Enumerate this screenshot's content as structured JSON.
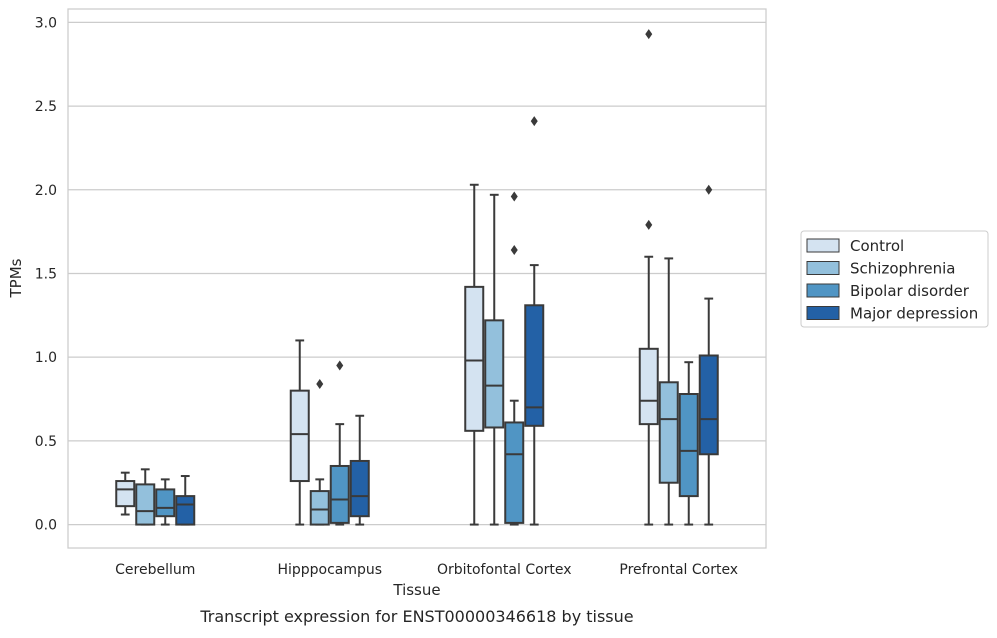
{
  "chart_data": {
    "type": "box",
    "xlabel": "Tissue",
    "ylabel": "TPMs",
    "caption": "Transcript expression for ENST00000346618 by tissue",
    "categories": [
      "Cerebellum",
      "Hipppocampus",
      "Orbitofontal Cortex",
      "Prefrontal Cortex"
    ],
    "ylim": [
      -0.14,
      3.08
    ],
    "yticks": [
      0.0,
      0.5,
      1.0,
      1.5,
      2.0,
      2.5,
      3.0
    ],
    "ytick_labels": [
      "0.0",
      "0.5",
      "1.0",
      "1.5",
      "2.0",
      "2.5",
      "3.0"
    ],
    "grid": "horizontal",
    "legend_position": "right",
    "series": [
      {
        "name": "Control",
        "color": "#d4e3f1",
        "boxes": [
          {
            "whislo": 0.06,
            "q1": 0.11,
            "med": 0.21,
            "q3": 0.26,
            "whishi": 0.31,
            "fliers": []
          },
          {
            "whislo": 0.0,
            "q1": 0.26,
            "med": 0.54,
            "q3": 0.8,
            "whishi": 1.1,
            "fliers": []
          },
          {
            "whislo": 0.0,
            "q1": 0.56,
            "med": 0.98,
            "q3": 1.42,
            "whishi": 2.03,
            "fliers": []
          },
          {
            "whislo": 0.0,
            "q1": 0.6,
            "med": 0.74,
            "q3": 1.05,
            "whishi": 1.6,
            "fliers": [
              1.79,
              2.93
            ]
          }
        ]
      },
      {
        "name": "Schizophrenia",
        "color": "#93c0dc",
        "boxes": [
          {
            "whislo": 0.0,
            "q1": 0.0,
            "med": 0.08,
            "q3": 0.24,
            "whishi": 0.33,
            "fliers": []
          },
          {
            "whislo": 0.0,
            "q1": 0.0,
            "med": 0.09,
            "q3": 0.2,
            "whishi": 0.27,
            "fliers": [
              0.84
            ]
          },
          {
            "whislo": 0.0,
            "q1": 0.58,
            "med": 0.83,
            "q3": 1.22,
            "whishi": 1.97,
            "fliers": []
          },
          {
            "whislo": 0.0,
            "q1": 0.25,
            "med": 0.63,
            "q3": 0.85,
            "whishi": 1.59,
            "fliers": []
          }
        ]
      },
      {
        "name": "Bipolar disorder",
        "color": "#5095c4",
        "boxes": [
          {
            "whislo": 0.0,
            "q1": 0.05,
            "med": 0.1,
            "q3": 0.21,
            "whishi": 0.27,
            "fliers": []
          },
          {
            "whislo": 0.0,
            "q1": 0.01,
            "med": 0.15,
            "q3": 0.35,
            "whishi": 0.6,
            "fliers": [
              0.95
            ]
          },
          {
            "whislo": 0.0,
            "q1": 0.01,
            "med": 0.42,
            "q3": 0.61,
            "whishi": 0.74,
            "fliers": [
              1.64,
              1.96
            ]
          },
          {
            "whislo": 0.0,
            "q1": 0.17,
            "med": 0.44,
            "q3": 0.78,
            "whishi": 0.97,
            "fliers": []
          }
        ]
      },
      {
        "name": "Major depression",
        "color": "#2361a6",
        "boxes": [
          {
            "whislo": 0.0,
            "q1": 0.0,
            "med": 0.12,
            "q3": 0.17,
            "whishi": 0.29,
            "fliers": []
          },
          {
            "whislo": 0.0,
            "q1": 0.05,
            "med": 0.17,
            "q3": 0.38,
            "whishi": 0.65,
            "fliers": []
          },
          {
            "whislo": 0.0,
            "q1": 0.59,
            "med": 0.7,
            "q3": 1.31,
            "whishi": 1.55,
            "fliers": [
              2.41
            ]
          },
          {
            "whislo": 0.0,
            "q1": 0.42,
            "med": 0.63,
            "q3": 1.01,
            "whishi": 1.35,
            "fliers": [
              2.0
            ]
          }
        ]
      }
    ]
  }
}
